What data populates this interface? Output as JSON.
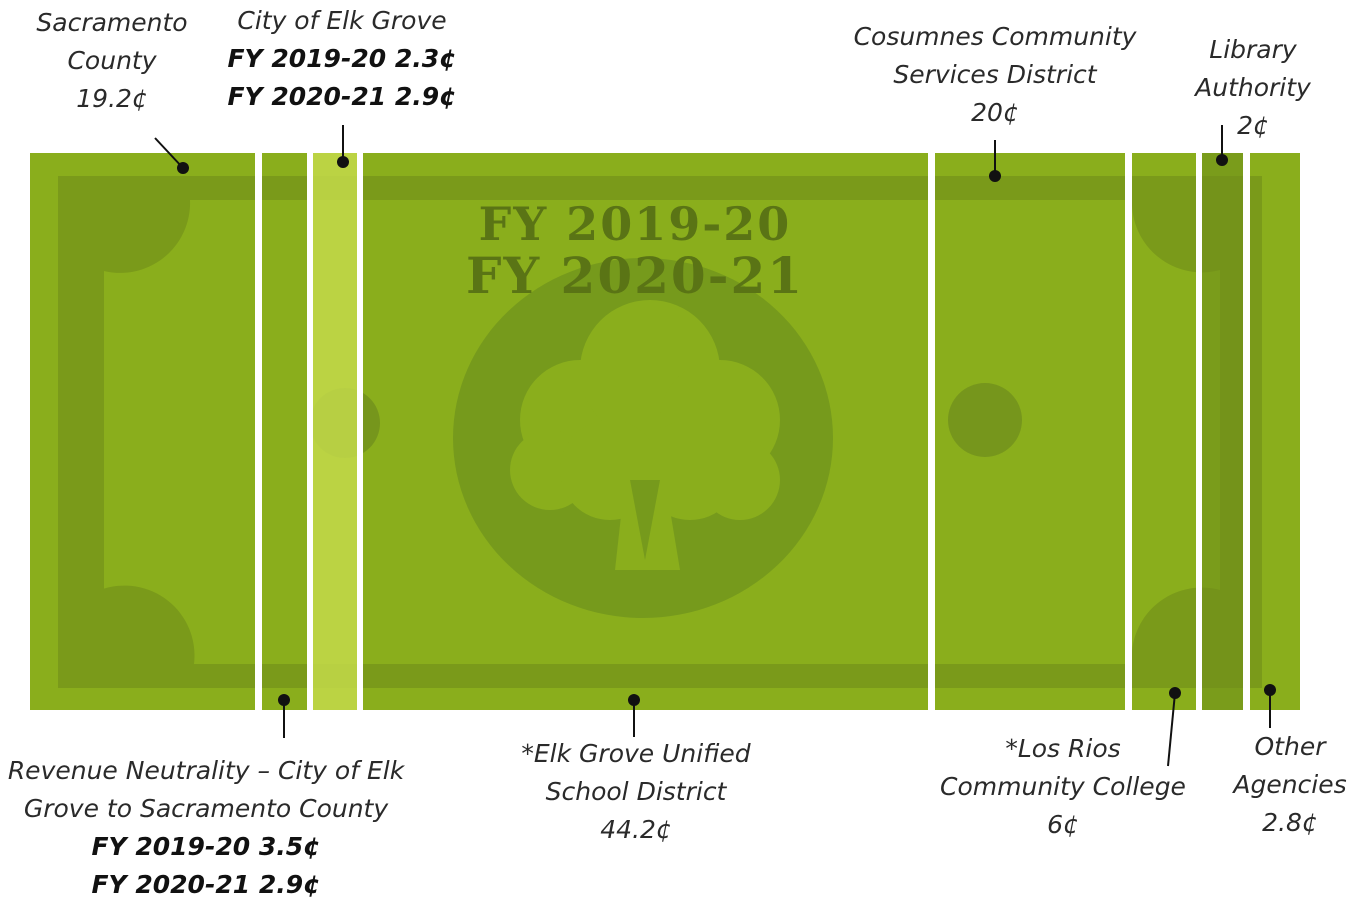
{
  "bill_title": [
    "FY 2019-20",
    "FY 2020-21"
  ],
  "labels": [
    {
      "lines": [
        "Sacramento",
        "County",
        "19.2¢"
      ],
      "bold_lines": []
    },
    {
      "lines": [
        "City of Elk Grove"
      ],
      "bold_lines": [
        "FY 2019-20 2.3¢",
        "FY 2020-21 2.9¢"
      ]
    },
    {
      "lines": [
        "Cosumnes Community",
        "Services District",
        "20¢"
      ],
      "bold_lines": []
    },
    {
      "lines": [
        "Library",
        "Authority",
        "2¢"
      ],
      "bold_lines": []
    },
    {
      "lines": [
        "Revenue Neutrality – City of Elk",
        "Grove to Sacramento County"
      ],
      "bold_lines": [
        "FY 2019-20 3.5¢",
        "FY 2020-21 2.9¢"
      ]
    },
    {
      "lines": [
        "*Elk Grove Unified",
        "School District",
        "44.2¢"
      ],
      "bold_lines": []
    },
    {
      "lines": [
        "*Los Rios",
        "Community College",
        "6¢"
      ],
      "bold_lines": []
    },
    {
      "lines": [
        "Other",
        "Agencies",
        "2.8¢"
      ],
      "bold_lines": []
    }
  ]
}
